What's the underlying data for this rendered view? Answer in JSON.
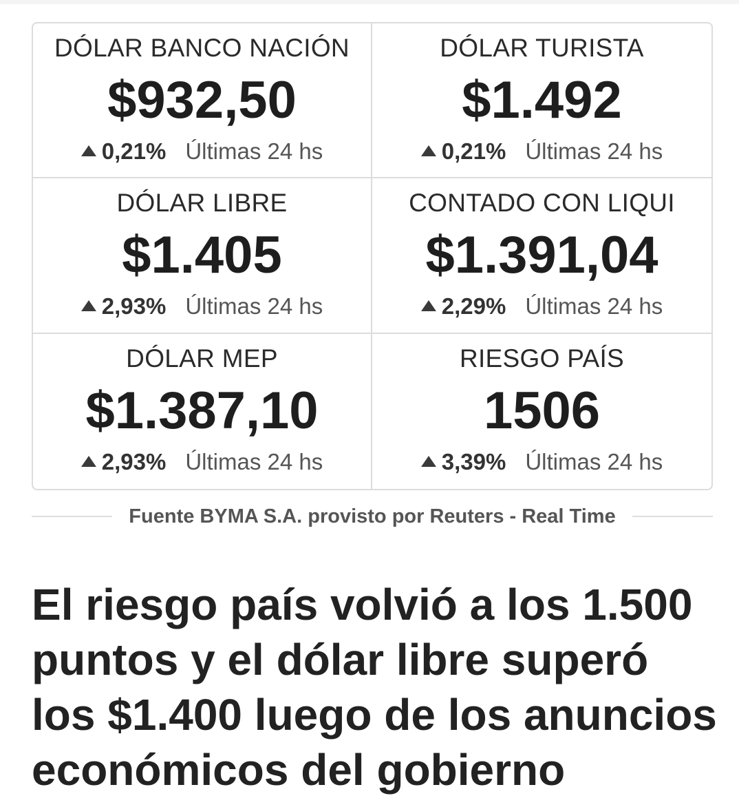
{
  "quotes": [
    {
      "title": "DÓLAR BANCO NACIÓN",
      "value": "$932,50",
      "change": "0,21%",
      "period": "Últimas 24 hs"
    },
    {
      "title": "DÓLAR TURISTA",
      "value": "$1.492",
      "change": "0,21%",
      "period": "Últimas 24 hs"
    },
    {
      "title": "DÓLAR LIBRE",
      "value": "$1.405",
      "change": "2,93%",
      "period": "Últimas 24 hs"
    },
    {
      "title": "CONTADO CON LIQUI",
      "value": "$1.391,04",
      "change": "2,29%",
      "period": "Últimas 24 hs"
    },
    {
      "title": "DÓLAR MEP",
      "value": "$1.387,10",
      "change": "2,93%",
      "period": "Últimas 24 hs"
    },
    {
      "title": "RIESGO PAÍS",
      "value": "1506",
      "change": "3,39%",
      "period": "Últimas 24 hs"
    }
  ],
  "change_direction_icon": "arrow-up-icon",
  "source": "Fuente BYMA S.A. provisto por Reuters - Real Time",
  "headline": "El riesgo país volvió a los 1.500 puntos y el dólar libre superó los $1.400 luego de los anuncios económicos del gobierno"
}
